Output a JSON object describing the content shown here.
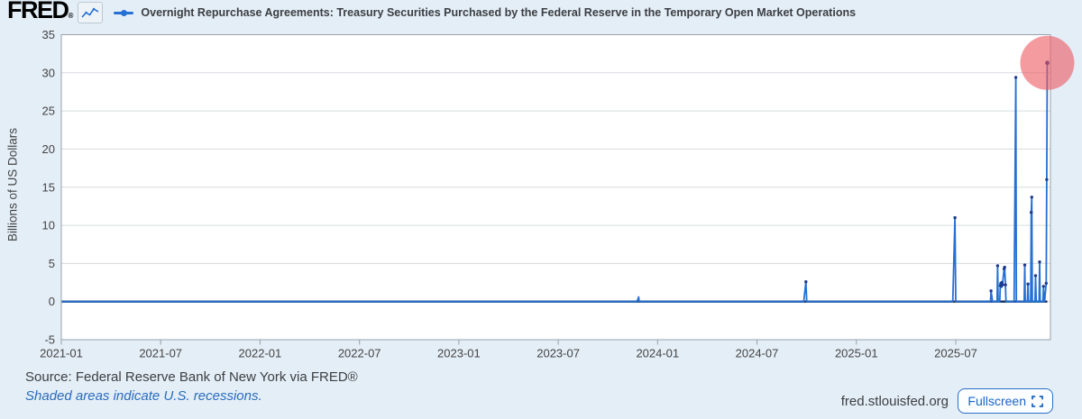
{
  "header": {
    "logo_text": "FRED",
    "registered_mark": "®",
    "series_legend": "Overnight Repurchase Agreements: Treasury Securities Purchased by the Federal Reserve in the Temporary Open Market Operations"
  },
  "chart_data": {
    "type": "line",
    "title": "Overnight Repurchase Agreements: Treasury Securities Purchased by the Federal Reserve in the Temporary Open Market Operations",
    "xlabel": "",
    "ylabel": "Billions of US Dollars",
    "ylim": [
      -5,
      35
    ],
    "yticks": [
      35,
      30,
      25,
      20,
      15,
      10,
      5,
      0,
      -5
    ],
    "xtick_labels": [
      "2021-01",
      "2021-07",
      "2022-01",
      "2022-07",
      "2023-01",
      "2023-07",
      "2024-01",
      "2024-07",
      "2025-01",
      "2025-07"
    ],
    "x_range": [
      "2021-01-01",
      "2025-12-17"
    ],
    "grid": "horizontal-only",
    "legend_position": "top",
    "line_color": "#2570d4",
    "marker_color": "#1f3a8c",
    "baseline_color": "#152a52",
    "highlight_annotation": {
      "shape": "circle",
      "fill": "rgba(236,88,96,0.60)",
      "radius_px": 30,
      "at_date": "2025-12-17",
      "at_value": 31.3
    },
    "series": [
      {
        "name": "Overnight Repurchase Agreements: Treasury Securities Purchased by the Federal Reserve in the Temporary Open Market Operations",
        "units": "Billions of US Dollars",
        "baseline_value": 0,
        "points": [
          [
            "2021-01-01",
            0
          ],
          [
            "2023-11-24",
            0
          ],
          [
            "2023-11-27",
            0.6
          ],
          [
            "2023-11-28",
            0
          ],
          [
            "2024-09-26",
            0
          ],
          [
            "2024-09-30",
            2.6
          ],
          [
            "2024-10-01",
            0
          ],
          [
            "2025-06-26",
            0
          ],
          [
            "2025-06-30",
            11.0
          ],
          [
            "2025-07-01",
            0
          ],
          [
            "2025-09-04",
            0
          ],
          [
            "2025-09-05",
            1.4
          ],
          [
            "2025-09-08",
            0
          ],
          [
            "2025-09-16",
            0
          ],
          [
            "2025-09-17",
            4.7
          ],
          [
            "2025-09-18",
            0
          ],
          [
            "2025-09-21",
            0
          ],
          [
            "2025-09-22",
            2.1
          ],
          [
            "2025-09-23",
            2.4
          ],
          [
            "2025-09-24",
            2.0
          ],
          [
            "2025-09-25",
            2.5
          ],
          [
            "2025-09-26",
            2.2
          ],
          [
            "2025-09-29",
            4.3
          ],
          [
            "2025-09-30",
            4.5
          ],
          [
            "2025-10-01",
            2.2
          ],
          [
            "2025-10-02",
            0
          ],
          [
            "2025-10-17",
            0
          ],
          [
            "2025-10-20",
            29.4
          ],
          [
            "2025-10-21",
            0
          ],
          [
            "2025-11-05",
            0
          ],
          [
            "2025-11-06",
            4.8
          ],
          [
            "2025-11-07",
            0
          ],
          [
            "2025-11-11",
            0
          ],
          [
            "2025-11-12",
            2.3
          ],
          [
            "2025-11-13",
            0
          ],
          [
            "2025-11-17",
            0
          ],
          [
            "2025-11-18",
            11.7
          ],
          [
            "2025-11-19",
            13.7
          ],
          [
            "2025-11-20",
            0
          ],
          [
            "2025-11-25",
            0
          ],
          [
            "2025-11-26",
            3.4
          ],
          [
            "2025-11-27",
            0
          ],
          [
            "2025-12-02",
            0
          ],
          [
            "2025-12-03",
            5.2
          ],
          [
            "2025-12-04",
            0
          ],
          [
            "2025-12-09",
            0
          ],
          [
            "2025-12-10",
            2.0
          ],
          [
            "2025-12-11",
            0
          ],
          [
            "2025-12-12",
            0
          ],
          [
            "2025-12-15",
            2.4
          ],
          [
            "2025-12-16",
            16.0
          ],
          [
            "2025-12-17",
            31.3
          ]
        ]
      }
    ]
  },
  "footer": {
    "source_text": "Source: Federal Reserve Bank of New York via FRED®",
    "recession_note": "Shaded areas indicate U.S. recessions.",
    "site_url": "fred.stlouisfed.org",
    "fullscreen_label": "Fullscreen"
  },
  "colors": {
    "page_background": "#e4eef7",
    "plot_background": "#ffffff",
    "plot_border": "#98a1a8",
    "gridline": "#d8dcdf",
    "axis_text": "#444444",
    "title_text": "#3b3e42",
    "link_blue": "#1a66c4"
  }
}
